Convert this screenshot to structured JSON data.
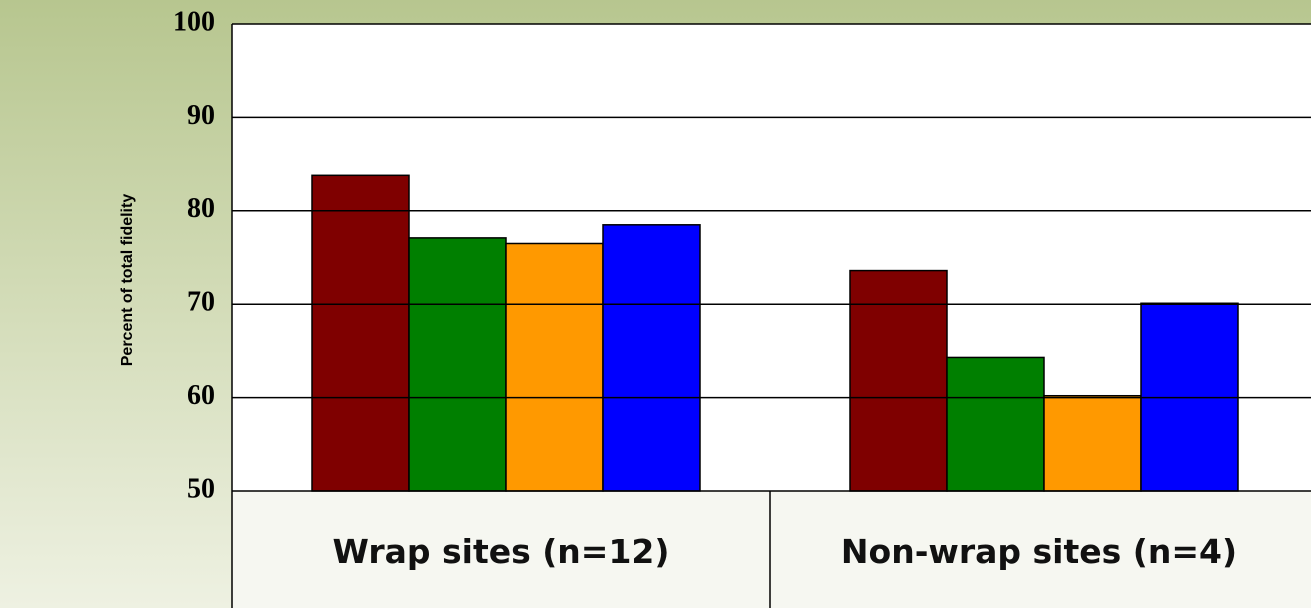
{
  "chart_data": {
    "type": "bar",
    "y_label": "Percent of total fidelity",
    "categories": [
      "Wrap sites (n=12)",
      "Non-wrap sites (n=4)"
    ],
    "series": [
      {
        "color": "#7f0000",
        "values": [
          83.8,
          73.6
        ]
      },
      {
        "color": "#007f00",
        "values": [
          77.1,
          64.3
        ]
      },
      {
        "color": "#ff9900",
        "values": [
          76.5,
          60.2
        ]
      },
      {
        "color": "#0000ff",
        "values": [
          78.5,
          70.1
        ]
      }
    ],
    "ylim": [
      50,
      100
    ],
    "yticks": [
      50,
      60,
      70,
      80,
      90,
      100
    ],
    "grid": true
  }
}
